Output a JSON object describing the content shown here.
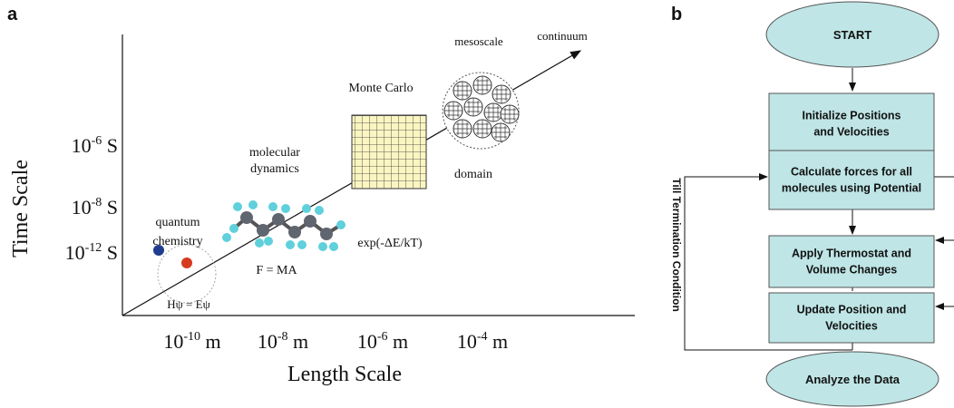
{
  "panel_a": {
    "label": "a",
    "y_axis_title": "Time Scale",
    "x_axis_title": "Length Scale",
    "y_labels": [
      {
        "base": "10",
        "exp": "-6",
        "unit": "S"
      },
      {
        "base": "10",
        "exp": "-8",
        "unit": "S"
      },
      {
        "base": "10",
        "exp": "-12",
        "unit": "S"
      }
    ],
    "x_labels": [
      {
        "base": "10",
        "exp": "-10",
        "unit": "m"
      },
      {
        "base": "10",
        "exp": "-8",
        "unit": "m"
      },
      {
        "base": "10",
        "exp": "-6",
        "unit": "m"
      },
      {
        "base": "10",
        "exp": "-4",
        "unit": "m"
      }
    ],
    "annotations": {
      "quantum": [
        "quantum",
        "chemistry"
      ],
      "schrodinger": "Hψ = Eψ",
      "md": [
        "molecular",
        "dynamics"
      ],
      "newton": "F = MA",
      "monte_carlo": "Monte Carlo",
      "boltzmann": "exp(-ΔE/kT)",
      "domain": "domain",
      "mesoscale": "mesoscale",
      "continuum": "continuum"
    }
  },
  "panel_b": {
    "label": "b",
    "start": "START",
    "steps": [
      [
        "Initialize Positions",
        "and Velocities"
      ],
      [
        "Calculate forces for all",
        "molecules using Potential"
      ],
      [
        "Apply Thermostat and",
        "Volume Changes"
      ],
      [
        "Update Position  and",
        "Velocities"
      ]
    ],
    "end": "Analyze the Data",
    "loop_label": "Till Termination Condition"
  }
}
